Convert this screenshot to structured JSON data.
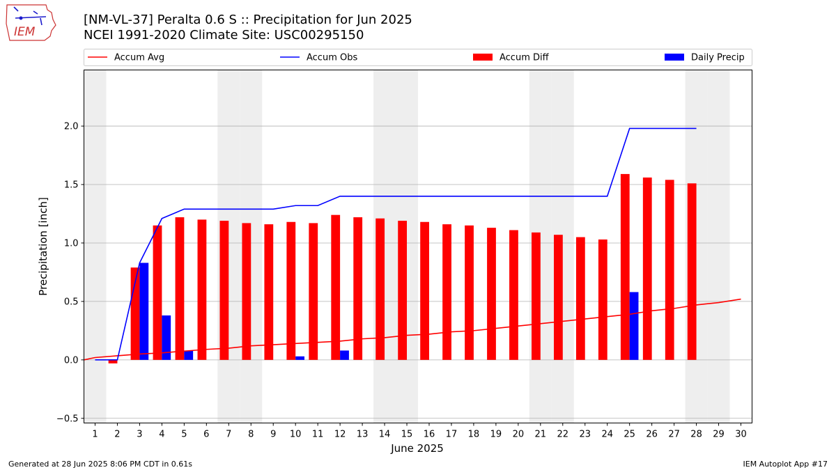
{
  "header": {
    "title_line1": "[NM-VL-37] Peralta 0.6 S :: Precipitation for Jun 2025",
    "title_line2": "NCEI 1991-2020 Climate Site: USC00295150"
  },
  "logo": {
    "text": "IEM"
  },
  "footer": {
    "generated": "Generated at 28 Jun 2025 8:06 PM CDT in 0.61s",
    "app": "IEM Autoplot App #17"
  },
  "colors": {
    "accum_avg": "#ff0000",
    "accum_obs": "#0000ff",
    "accum_diff": "#ff0000",
    "daily_precip": "#0000ff",
    "weekend_shade": "#eeeeee",
    "grid": "#b0b0b0"
  },
  "chart_data": {
    "type": "bar",
    "xlabel": "June 2025",
    "ylabel": "Precipitation [inch]",
    "ylim": [
      -0.54,
      2.48
    ],
    "xlim": [
      0.5,
      30.5
    ],
    "yticks": [
      -0.5,
      0.0,
      0.5,
      1.0,
      1.5,
      2.0
    ],
    "ytick_labels": [
      "−0.5",
      "0.0",
      "0.5",
      "1.0",
      "1.5",
      "2.0"
    ],
    "x": [
      1,
      2,
      3,
      4,
      5,
      6,
      7,
      8,
      9,
      10,
      11,
      12,
      13,
      14,
      15,
      16,
      17,
      18,
      19,
      20,
      21,
      22,
      23,
      24,
      25,
      26,
      27,
      28,
      29,
      30
    ],
    "xtick_labels": [
      "1",
      "2",
      "3",
      "4",
      "5",
      "6",
      "7",
      "8",
      "9",
      "10",
      "11",
      "12",
      "13",
      "14",
      "15",
      "16",
      "17",
      "18",
      "19",
      "20",
      "21",
      "22",
      "23",
      "24",
      "25",
      "26",
      "27",
      "28",
      "29",
      "30"
    ],
    "grid": "horizontal",
    "legend_placement": "top, above plot",
    "weekend_days": [
      1,
      7,
      8,
      14,
      15,
      21,
      22,
      28,
      29
    ],
    "series": [
      {
        "name": "Accum Avg",
        "kind": "line",
        "x": [
          0.5,
          1,
          2,
          3,
          4,
          5,
          6,
          7,
          8,
          9,
          10,
          11,
          12,
          13,
          14,
          15,
          16,
          17,
          18,
          19,
          20,
          21,
          22,
          23,
          24,
          25,
          26,
          27,
          28,
          29,
          30
        ],
        "values": [
          0.0,
          0.02,
          0.035,
          0.05,
          0.06,
          0.075,
          0.09,
          0.1,
          0.12,
          0.13,
          0.14,
          0.15,
          0.16,
          0.18,
          0.19,
          0.21,
          0.22,
          0.24,
          0.25,
          0.27,
          0.29,
          0.31,
          0.33,
          0.35,
          0.37,
          0.39,
          0.42,
          0.44,
          0.47,
          0.49,
          0.52
        ]
      },
      {
        "name": "Accum Obs",
        "kind": "line",
        "x": [
          1,
          2,
          3,
          4,
          5,
          6,
          7,
          8,
          9,
          10,
          11,
          12,
          13,
          14,
          15,
          16,
          17,
          18,
          19,
          20,
          21,
          22,
          23,
          24,
          25,
          26,
          27,
          28
        ],
        "values": [
          0.0,
          0.0,
          0.83,
          1.21,
          1.29,
          1.29,
          1.29,
          1.29,
          1.29,
          1.32,
          1.32,
          1.4,
          1.4,
          1.4,
          1.4,
          1.4,
          1.4,
          1.4,
          1.4,
          1.4,
          1.4,
          1.4,
          1.4,
          1.4,
          1.98,
          1.98,
          1.98,
          1.98
        ]
      },
      {
        "name": "Accum Diff",
        "kind": "bar",
        "x": [
          2,
          3,
          4,
          5,
          6,
          7,
          8,
          9,
          10,
          11,
          12,
          13,
          14,
          15,
          16,
          17,
          18,
          19,
          20,
          21,
          22,
          23,
          24,
          25,
          26,
          27,
          28
        ],
        "values": [
          -0.03,
          0.79,
          1.15,
          1.22,
          1.2,
          1.19,
          1.17,
          1.16,
          1.18,
          1.17,
          1.24,
          1.22,
          1.21,
          1.19,
          1.18,
          1.16,
          1.15,
          1.13,
          1.11,
          1.09,
          1.07,
          1.05,
          1.03,
          1.59,
          1.56,
          1.54,
          1.51
        ]
      },
      {
        "name": "Daily Precip",
        "kind": "bar",
        "x": [
          3,
          4,
          5,
          10,
          12,
          25
        ],
        "values": [
          0.83,
          0.38,
          0.08,
          0.03,
          0.08,
          0.58
        ]
      }
    ]
  }
}
